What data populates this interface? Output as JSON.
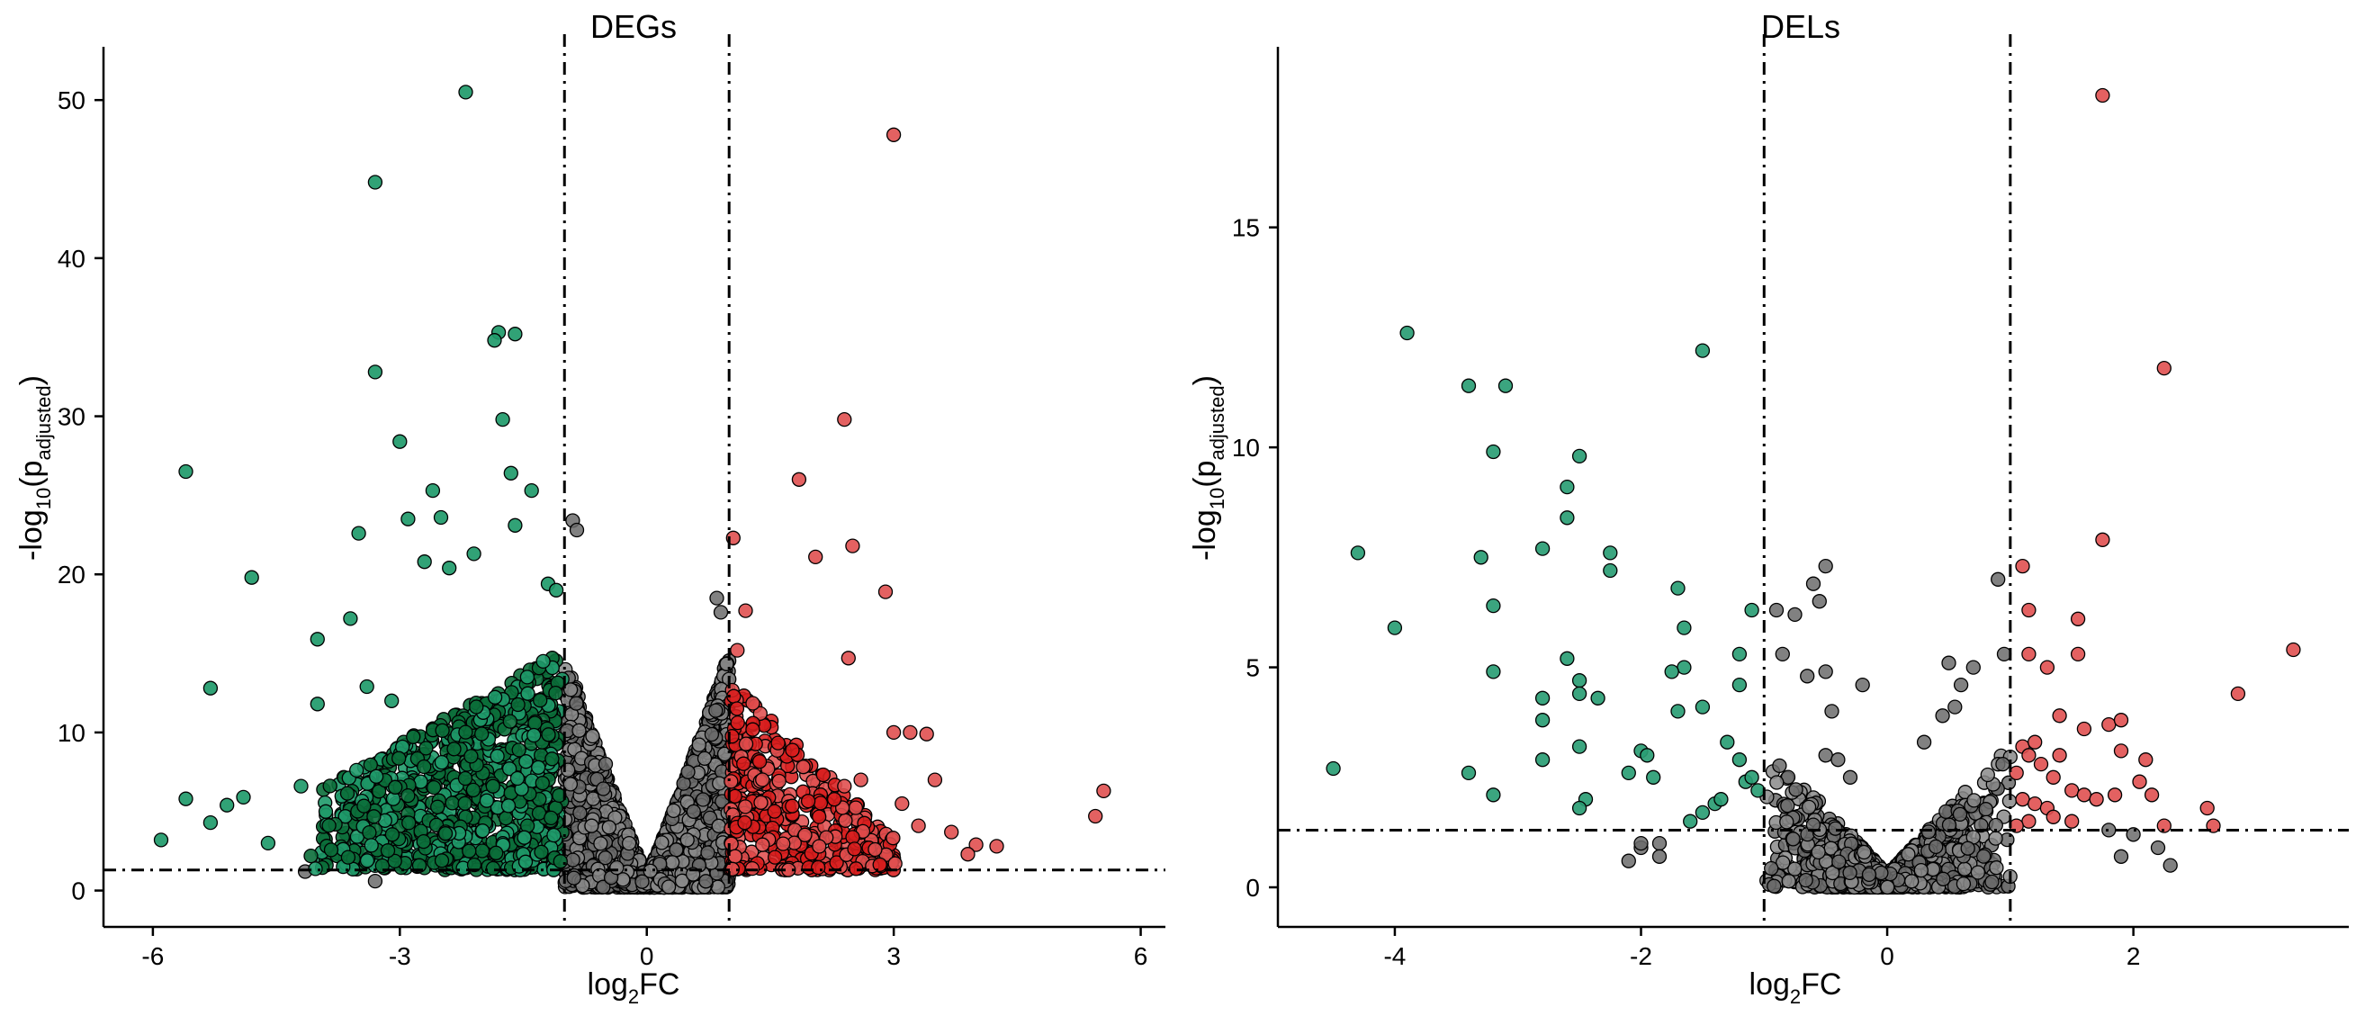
{
  "colors": {
    "deg_down": "#0b6e3a",
    "deg_down_light": "#1f9a6a",
    "del_down": "#2a9d74",
    "up": "#d81e1e",
    "up_light": "#e05050",
    "ns": "#6b6b6b",
    "ns_light": "#8a8a8a"
  },
  "chart_data": [
    {
      "type": "scatter",
      "title": "DEGs",
      "xlabel_main": "log",
      "xlabel_sub": "2",
      "xlabel_tail": "FC",
      "ylabel_pre": "-log",
      "ylabel_sub1": "10",
      "ylabel_mid": "(p",
      "ylabel_sub2": "adjusted",
      "ylabel_post": ")",
      "xlim": [
        -6.6,
        6.3
      ],
      "ylim": [
        -2.3,
        52.8
      ],
      "xticks": [
        -6,
        -3,
        0,
        3,
        6
      ],
      "yticks": [
        0,
        10,
        20,
        30,
        40,
        50
      ],
      "xtick_labels": [
        "-6",
        "-3",
        "0",
        "3",
        "6"
      ],
      "ytick_labels": [
        "0",
        "10",
        "20",
        "30",
        "40",
        "50"
      ],
      "fc_threshold": [
        -1,
        1
      ],
      "p_threshold": 1.3,
      "seed": 17,
      "series": [
        {
          "group": "down",
          "n_dense": 900,
          "notable": [
            [
              -2.2,
              50.5
            ],
            [
              -3.3,
              44.8
            ],
            [
              -1.8,
              35.3
            ],
            [
              -1.6,
              35.2
            ],
            [
              -1.85,
              34.8
            ],
            [
              -3.3,
              32.8
            ],
            [
              -1.75,
              29.8
            ],
            [
              -3.0,
              28.4
            ],
            [
              -5.6,
              26.5
            ],
            [
              -1.65,
              26.4
            ],
            [
              -2.6,
              25.3
            ],
            [
              -1.4,
              25.3
            ],
            [
              -2.5,
              23.6
            ],
            [
              -2.9,
              23.5
            ],
            [
              -1.6,
              23.1
            ],
            [
              -3.5,
              22.6
            ],
            [
              -2.7,
              20.8
            ],
            [
              -4.8,
              19.8
            ],
            [
              -1.2,
              19.4
            ],
            [
              -5.3,
              12.8
            ],
            [
              -4.0,
              15.9
            ],
            [
              -3.6,
              17.2
            ],
            [
              -5.9,
              3.2
            ],
            [
              -5.6,
              5.8
            ],
            [
              -5.1,
              5.4
            ],
            [
              -5.3,
              4.3
            ],
            [
              -4.9,
              5.9
            ],
            [
              -4.2,
              6.6
            ],
            [
              -4.6,
              3.0
            ],
            [
              -4.0,
              11.8
            ],
            [
              -3.9,
              5.0
            ],
            [
              -3.4,
              12.9
            ],
            [
              -3.1,
              12.0
            ],
            [
              -2.4,
              20.4
            ],
            [
              -2.1,
              21.3
            ],
            [
              -1.1,
              19.0
            ]
          ]
        },
        {
          "group": "up",
          "n_dense": 420,
          "notable": [
            [
              3.0,
              47.8
            ],
            [
              2.4,
              29.8
            ],
            [
              1.85,
              26.0
            ],
            [
              2.5,
              21.8
            ],
            [
              2.05,
              21.1
            ],
            [
              1.05,
              22.3
            ],
            [
              2.9,
              18.9
            ],
            [
              1.2,
              17.7
            ],
            [
              2.45,
              14.7
            ],
            [
              1.1,
              15.2
            ],
            [
              3.0,
              10.0
            ],
            [
              3.2,
              10.0
            ],
            [
              3.4,
              9.9
            ],
            [
              3.1,
              5.5
            ],
            [
              3.5,
              7.0
            ],
            [
              3.7,
              3.7
            ],
            [
              4.0,
              2.9
            ],
            [
              4.25,
              2.8
            ],
            [
              5.45,
              4.7
            ],
            [
              5.55,
              6.3
            ],
            [
              3.9,
              2.3
            ],
            [
              3.3,
              4.1
            ],
            [
              2.6,
              7.0
            ],
            [
              2.4,
              6.6
            ]
          ]
        },
        {
          "group": "ns",
          "n_dense": 3000,
          "notable": [
            [
              -0.9,
              23.4
            ],
            [
              -0.85,
              22.8
            ],
            [
              -4.15,
              1.2
            ],
            [
              -3.3,
              0.6
            ],
            [
              0.85,
              18.5
            ],
            [
              0.9,
              17.6
            ],
            [
              -0.5,
              8.0
            ],
            [
              0.5,
              7.5
            ]
          ]
        }
      ]
    },
    {
      "type": "scatter",
      "title": "DELs",
      "xlabel_main": "log",
      "xlabel_sub": "2",
      "xlabel_tail": "FC",
      "ylabel_pre": "-log",
      "ylabel_sub1": "10",
      "ylabel_mid": "(p",
      "ylabel_sub2": "adjusted",
      "ylabel_post": ")",
      "xlim": [
        -4.95,
        3.75
      ],
      "ylim": [
        -0.9,
        18.9
      ],
      "xticks": [
        -4,
        -2,
        0,
        2
      ],
      "yticks": [
        0,
        5,
        10,
        15
      ],
      "xtick_labels": [
        "-4",
        "-2",
        "0",
        "2"
      ],
      "ytick_labels": [
        "0",
        "5",
        "10",
        "15"
      ],
      "fc_threshold": [
        -1,
        1
      ],
      "p_threshold": 1.3,
      "seed": 29,
      "series": [
        {
          "group": "down",
          "n_dense": 0,
          "notable": [
            [
              -3.9,
              12.6
            ],
            [
              -1.5,
              12.2
            ],
            [
              -3.4,
              11.4
            ],
            [
              -3.1,
              11.4
            ],
            [
              -3.2,
              9.9
            ],
            [
              -2.5,
              9.8
            ],
            [
              -2.6,
              9.1
            ],
            [
              -2.6,
              8.4
            ],
            [
              -4.3,
              7.6
            ],
            [
              -2.8,
              7.7
            ],
            [
              -2.25,
              7.6
            ],
            [
              -2.25,
              7.2
            ],
            [
              -3.3,
              7.5
            ],
            [
              -3.2,
              6.4
            ],
            [
              -4.0,
              5.9
            ],
            [
              -1.7,
              6.8
            ],
            [
              -1.65,
              5.9
            ],
            [
              -1.1,
              6.3
            ],
            [
              -3.2,
              4.9
            ],
            [
              -2.6,
              5.2
            ],
            [
              -2.5,
              4.7
            ],
            [
              -2.5,
              4.4
            ],
            [
              -2.35,
              4.3
            ],
            [
              -1.65,
              5.0
            ],
            [
              -1.75,
              4.9
            ],
            [
              -1.2,
              5.3
            ],
            [
              -1.2,
              4.6
            ],
            [
              -1.5,
              4.1
            ],
            [
              -1.7,
              4.0
            ],
            [
              -2.8,
              4.3
            ],
            [
              -2.8,
              3.8
            ],
            [
              -2.5,
              3.2
            ],
            [
              -2.8,
              2.9
            ],
            [
              -3.4,
              2.6
            ],
            [
              -3.2,
              2.1
            ],
            [
              -2.0,
              3.1
            ],
            [
              -1.95,
              3.0
            ],
            [
              -2.1,
              2.6
            ],
            [
              -1.9,
              2.5
            ],
            [
              -2.45,
              2.0
            ],
            [
              -2.5,
              1.8
            ],
            [
              -1.3,
              3.3
            ],
            [
              -1.2,
              2.9
            ],
            [
              -1.15,
              2.4
            ],
            [
              -1.1,
              2.5
            ],
            [
              -1.5,
              1.7
            ],
            [
              -1.4,
              1.9
            ],
            [
              -1.35,
              2.0
            ],
            [
              -1.6,
              1.5
            ],
            [
              -4.5,
              2.7
            ],
            [
              -1.05,
              2.2
            ]
          ]
        },
        {
          "group": "up",
          "n_dense": 0,
          "notable": [
            [
              1.75,
              18.0
            ],
            [
              2.25,
              11.8
            ],
            [
              1.75,
              7.9
            ],
            [
              1.1,
              7.3
            ],
            [
              3.3,
              5.4
            ],
            [
              2.85,
              4.4
            ],
            [
              1.15,
              6.3
            ],
            [
              1.55,
              6.1
            ],
            [
              1.15,
              5.3
            ],
            [
              1.55,
              5.3
            ],
            [
              1.3,
              5.0
            ],
            [
              1.4,
              3.9
            ],
            [
              1.8,
              3.7
            ],
            [
              1.9,
              3.8
            ],
            [
              1.6,
              3.6
            ],
            [
              2.1,
              2.9
            ],
            [
              1.1,
              3.2
            ],
            [
              1.15,
              3.0
            ],
            [
              1.25,
              2.8
            ],
            [
              1.2,
              3.3
            ],
            [
              1.05,
              2.6
            ],
            [
              1.35,
              2.5
            ],
            [
              1.4,
              3.0
            ],
            [
              1.5,
              2.2
            ],
            [
              1.6,
              2.1
            ],
            [
              1.7,
              2.0
            ],
            [
              1.85,
              2.1
            ],
            [
              1.9,
              3.1
            ],
            [
              2.05,
              2.4
            ],
            [
              2.15,
              2.1
            ],
            [
              1.1,
              2.0
            ],
            [
              1.2,
              1.9
            ],
            [
              1.3,
              1.8
            ],
            [
              1.15,
              1.5
            ],
            [
              1.35,
              1.6
            ],
            [
              2.6,
              1.8
            ],
            [
              2.25,
              1.4
            ],
            [
              2.65,
              1.4
            ],
            [
              1.05,
              1.4
            ],
            [
              1.5,
              1.5
            ]
          ]
        },
        {
          "group": "ns",
          "n_dense": 1300,
          "notable": [
            [
              -0.5,
              7.3
            ],
            [
              -0.55,
              6.5
            ],
            [
              -0.5,
              4.9
            ],
            [
              -0.45,
              4.0
            ],
            [
              -0.2,
              4.6
            ],
            [
              -0.65,
              4.8
            ],
            [
              -0.5,
              3.0
            ],
            [
              -0.4,
              2.9
            ],
            [
              -0.3,
              2.5
            ],
            [
              -0.85,
              5.3
            ],
            [
              -0.9,
              6.3
            ],
            [
              -0.75,
              6.2
            ],
            [
              -0.6,
              6.9
            ],
            [
              0.5,
              5.1
            ],
            [
              0.7,
              5.0
            ],
            [
              0.6,
              4.6
            ],
            [
              0.55,
              4.1
            ],
            [
              0.9,
              7.0
            ],
            [
              0.95,
              5.3
            ],
            [
              0.45,
              3.9
            ],
            [
              0.3,
              3.3
            ],
            [
              -1.85,
              1.0
            ],
            [
              -1.85,
              0.7
            ],
            [
              -2.0,
              0.9
            ],
            [
              -2.0,
              1.0
            ],
            [
              -2.1,
              0.6
            ],
            [
              1.8,
              1.3
            ],
            [
              1.9,
              0.7
            ],
            [
              2.0,
              1.2
            ],
            [
              2.2,
              0.9
            ],
            [
              2.3,
              0.5
            ]
          ]
        }
      ]
    }
  ]
}
